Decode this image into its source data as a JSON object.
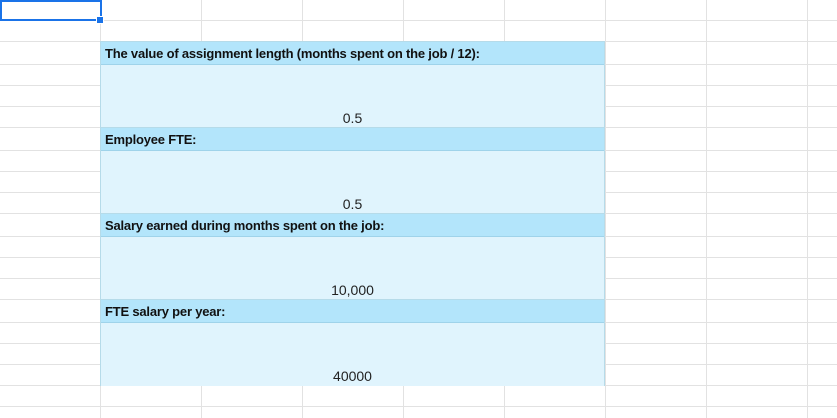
{
  "sections": [
    {
      "label": "The value of assignment length (months spent on the job / 12):",
      "value": "0.5"
    },
    {
      "label": "Employee FTE:",
      "value": "0.5"
    },
    {
      "label": "Salary earned during months spent on the job:",
      "value": "10,000"
    },
    {
      "label": "FTE salary per year:",
      "value": "40000"
    }
  ],
  "colors": {
    "header": "#b3e5fb",
    "value": "#e0f4fd",
    "selection": "#1a73e8"
  }
}
